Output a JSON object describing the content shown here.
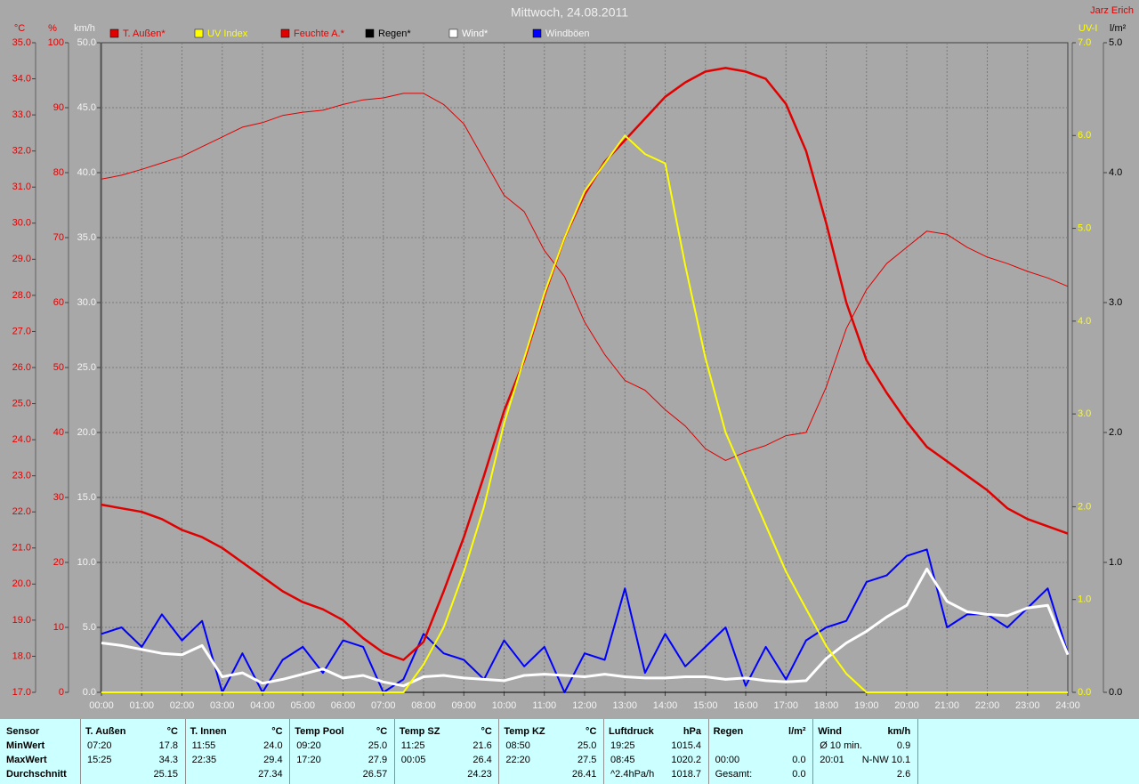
{
  "chart_data": {
    "type": "line",
    "title": "Mittwoch, 24.08.2011",
    "credit": "Jarz Erich",
    "grid": true,
    "xlim": [
      0,
      24
    ],
    "xticks": [
      {
        "value": 0,
        "label": "00:00"
      },
      {
        "value": 1,
        "label": "01:00"
      },
      {
        "value": 2,
        "label": "02:00"
      },
      {
        "value": 3,
        "label": "03:00"
      },
      {
        "value": 4,
        "label": "04:00"
      },
      {
        "value": 5,
        "label": "05:00"
      },
      {
        "value": 6,
        "label": "06:00"
      },
      {
        "value": 7,
        "label": "07:00"
      },
      {
        "value": 8,
        "label": "08:00"
      },
      {
        "value": 9,
        "label": "09:00"
      },
      {
        "value": 10,
        "label": "10:00"
      },
      {
        "value": 11,
        "label": "11:00"
      },
      {
        "value": 12,
        "label": "12:00"
      },
      {
        "value": 13,
        "label": "13:00"
      },
      {
        "value": 14,
        "label": "14:00"
      },
      {
        "value": 15,
        "label": "15:00"
      },
      {
        "value": 16,
        "label": "16:00"
      },
      {
        "value": 17,
        "label": "17:00"
      },
      {
        "value": 18,
        "label": "18:00"
      },
      {
        "value": 19,
        "label": "19:00"
      },
      {
        "value": 20,
        "label": "20:00"
      },
      {
        "value": 21,
        "label": "21:00"
      },
      {
        "value": 22,
        "label": "22:00"
      },
      {
        "value": 23,
        "label": "23:00"
      },
      {
        "value": 24,
        "label": "24:00"
      }
    ],
    "axes": {
      "y": {
        "label": "°C",
        "color": "#e00000",
        "lim": [
          17,
          35
        ],
        "ticks": [
          {
            "value": 17,
            "label": "17.0"
          },
          {
            "value": 18,
            "label": "18.0"
          },
          {
            "value": 19,
            "label": "19.0"
          },
          {
            "value": 20,
            "label": "20.0"
          },
          {
            "value": 21,
            "label": "21.0"
          },
          {
            "value": 22,
            "label": "22.0"
          },
          {
            "value": 23,
            "label": "23.0"
          },
          {
            "value": 24,
            "label": "24.0"
          },
          {
            "value": 25,
            "label": "25.0"
          },
          {
            "value": 26,
            "label": "26.0"
          },
          {
            "value": 27,
            "label": "27.0"
          },
          {
            "value": 28,
            "label": "28.0"
          },
          {
            "value": 29,
            "label": "29.0"
          },
          {
            "value": 30,
            "label": "30.0"
          },
          {
            "value": 31,
            "label": "31.0"
          },
          {
            "value": 32,
            "label": "32.0"
          },
          {
            "value": 33,
            "label": "33.0"
          },
          {
            "value": 34,
            "label": "34.0"
          },
          {
            "value": 35,
            "label": "35.0"
          }
        ]
      },
      "y2": {
        "label": "%",
        "color": "#e00000",
        "lim": [
          0,
          100
        ],
        "ticks": [
          0,
          10,
          20,
          30,
          40,
          50,
          60,
          70,
          80,
          90,
          100
        ]
      },
      "y3": {
        "label": "km/h",
        "color": "#f4f4f4",
        "lim": [
          0,
          50
        ],
        "ticks": [
          {
            "value": 0,
            "label": "0.0"
          },
          {
            "value": 5,
            "label": "5.0"
          },
          {
            "value": 10,
            "label": "10.0"
          },
          {
            "value": 15,
            "label": "15.0"
          },
          {
            "value": 20,
            "label": "20.0"
          },
          {
            "value": 25,
            "label": "25.0"
          },
          {
            "value": 30,
            "label": "30.0"
          },
          {
            "value": 35,
            "label": "35.0"
          },
          {
            "value": 40,
            "label": "40.0"
          },
          {
            "value": 45,
            "label": "45.0"
          },
          {
            "value": 50,
            "label": "50.0"
          }
        ]
      },
      "y4": {
        "label": "UV-I",
        "color": "#ffff00",
        "lim": [
          0,
          7
        ],
        "ticks": [
          {
            "value": 0,
            "label": "0.0"
          },
          {
            "value": 1,
            "label": "1.0"
          },
          {
            "value": 2,
            "label": "2.0"
          },
          {
            "value": 3,
            "label": "3.0"
          },
          {
            "value": 4,
            "label": "4.0"
          },
          {
            "value": 5,
            "label": "5.0"
          },
          {
            "value": 6,
            "label": "6.0"
          },
          {
            "value": 7,
            "label": "7.0"
          }
        ]
      },
      "y5": {
        "label": "l/m²",
        "color": "#000000",
        "lim": [
          0,
          5
        ],
        "ticks": [
          {
            "value": 0,
            "label": "0.0"
          },
          {
            "value": 1,
            "label": "1.0"
          },
          {
            "value": 2,
            "label": "2.0"
          },
          {
            "value": 3,
            "label": "3.0"
          },
          {
            "value": 4,
            "label": "4.0"
          },
          {
            "value": 5,
            "label": "5.0"
          }
        ]
      }
    },
    "x": [
      0,
      0.5,
      1,
      1.5,
      2,
      2.5,
      3,
      3.5,
      4,
      4.5,
      5,
      5.5,
      6,
      6.5,
      7,
      7.5,
      8,
      8.5,
      9,
      9.5,
      10,
      10.5,
      11,
      11.5,
      12,
      12.5,
      13,
      13.5,
      14,
      14.5,
      15,
      15.5,
      16,
      16.5,
      17,
      17.5,
      18,
      18.5,
      19,
      19.5,
      20,
      20.5,
      21,
      21.5,
      22,
      22.5,
      23,
      23.5,
      24
    ],
    "series": [
      {
        "name": "T. Außen*",
        "color": "#e00000",
        "axis": "y",
        "values": [
          22.2,
          22.1,
          22.0,
          21.8,
          21.5,
          21.3,
          21.0,
          20.6,
          20.2,
          19.8,
          19.5,
          19.3,
          19.0,
          18.5,
          18.1,
          17.9,
          18.4,
          19.8,
          21.3,
          23.0,
          24.8,
          26.2,
          28.0,
          29.6,
          30.8,
          31.7,
          32.3,
          32.9,
          33.5,
          33.9,
          34.2,
          34.3,
          34.2,
          34.0,
          33.3,
          32.0,
          30.0,
          27.8,
          26.2,
          25.3,
          24.5,
          23.8,
          23.4,
          23.0,
          22.6,
          22.1,
          21.8,
          21.6,
          21.4
        ]
      },
      {
        "name": "UV Index",
        "color": "#ffff00",
        "axis": "y4",
        "values": [
          0,
          0,
          0,
          0,
          0,
          0,
          0,
          0,
          0,
          0,
          0,
          0,
          0,
          0,
          0,
          0,
          0.3,
          0.7,
          1.3,
          2.0,
          2.9,
          3.6,
          4.3,
          4.9,
          5.4,
          5.7,
          6.0,
          5.8,
          5.7,
          4.6,
          3.6,
          2.8,
          2.3,
          1.8,
          1.3,
          0.9,
          0.5,
          0.2,
          0,
          0,
          0,
          0,
          0,
          0,
          0,
          0,
          0,
          0,
          0
        ]
      },
      {
        "name": "Feuchte A.*",
        "color": "#e00000",
        "axis": "y2",
        "values": [
          79.0,
          79.6,
          80.5,
          81.5,
          82.5,
          84.0,
          85.5,
          87.0,
          87.7,
          88.8,
          89.3,
          89.6,
          90.5,
          91.2,
          91.5,
          92.2,
          92.2,
          90.5,
          87.5,
          82.0,
          76.5,
          74.0,
          68.0,
          64.0,
          57.0,
          52.0,
          48.0,
          46.5,
          43.5,
          41.0,
          37.5,
          35.7,
          37.0,
          38.0,
          39.5,
          40.0,
          47.0,
          56.0,
          62.0,
          66.0,
          68.5,
          71.0,
          70.5,
          68.5,
          67.0,
          66.0,
          64.8,
          63.8,
          62.5
        ]
      },
      {
        "name": "Regen*",
        "color": "#000000",
        "axis": "y5",
        "values": [
          0,
          0,
          0,
          0,
          0,
          0,
          0,
          0,
          0,
          0,
          0,
          0,
          0,
          0,
          0,
          0,
          0,
          0,
          0,
          0,
          0,
          0,
          0,
          0,
          0,
          0,
          0,
          0,
          0,
          0,
          0,
          0,
          0,
          0,
          0,
          0,
          0,
          0,
          0,
          0,
          0,
          0,
          0,
          0,
          0,
          0,
          0,
          0,
          0
        ]
      },
      {
        "name": "Wind*",
        "color": "#ffffff",
        "axis": "y3",
        "values": [
          3.8,
          3.6,
          3.3,
          3.0,
          2.9,
          3.6,
          1.2,
          1.5,
          0.7,
          1.0,
          1.4,
          1.8,
          1.1,
          1.3,
          0.8,
          0.5,
          1.2,
          1.3,
          1.1,
          1.0,
          0.9,
          1.3,
          1.4,
          1.3,
          1.2,
          1.4,
          1.2,
          1.1,
          1.1,
          1.2,
          1.2,
          1.0,
          1.1,
          0.9,
          0.8,
          0.9,
          2.6,
          3.8,
          4.7,
          5.8,
          6.7,
          9.5,
          7.0,
          6.2,
          6.0,
          5.9,
          6.5,
          6.7,
          2.9
        ]
      },
      {
        "name": "Windböen",
        "color": "#0000ff",
        "axis": "y3",
        "values": [
          4.5,
          5.0,
          3.5,
          6.0,
          4.0,
          5.5,
          0,
          3.0,
          0,
          2.5,
          3.5,
          1.5,
          4.0,
          3.5,
          0,
          1.0,
          4.5,
          3.0,
          2.5,
          1.0,
          4.0,
          2.0,
          3.5,
          0,
          3.0,
          2.5,
          8.0,
          1.5,
          4.5,
          2.0,
          3.5,
          5.0,
          0.5,
          3.5,
          1.0,
          4.0,
          5.0,
          5.5,
          8.5,
          9.0,
          10.5,
          11.0,
          5.0,
          6.0,
          6.0,
          5.0,
          6.5,
          8.0,
          3.0
        ]
      }
    ]
  },
  "table": {
    "row_labels": [
      "Sensor",
      "MinWert",
      "MaxWert",
      "Durchschnitt"
    ],
    "sections": [
      {
        "name": "T. Außen",
        "unit": "°C",
        "rows": [
          [
            "07:20",
            "17.8"
          ],
          [
            "15:25",
            "34.3"
          ],
          [
            "25.15"
          ]
        ]
      },
      {
        "name": "T. Innen",
        "unit": "°C",
        "rows": [
          [
            "11:55",
            "24.0"
          ],
          [
            "22:35",
            "29.4"
          ],
          [
            "27.34"
          ]
        ]
      },
      {
        "name": "Temp Pool",
        "unit": "°C",
        "rows": [
          [
            "09:20",
            "25.0"
          ],
          [
            "17:20",
            "27.9"
          ],
          [
            "26.57"
          ]
        ]
      },
      {
        "name": "Temp SZ",
        "unit": "°C",
        "rows": [
          [
            "11:25",
            "21.6"
          ],
          [
            "00:05",
            "26.4"
          ],
          [
            "24.23"
          ]
        ]
      },
      {
        "name": "Temp KZ",
        "unit": "°C",
        "rows": [
          [
            "08:50",
            "25.0"
          ],
          [
            "22:20",
            "27.5"
          ],
          [
            "26.41"
          ]
        ]
      },
      {
        "name": "Luftdruck",
        "unit": "hPa",
        "rows": [
          [
            "19:25",
            "1015.4"
          ],
          [
            "08:45",
            "1020.2"
          ],
          [
            "^2.4hPa/h",
            "1018.7"
          ]
        ]
      },
      {
        "name": "Regen",
        "unit": "l/m²",
        "rows": [
          [],
          [
            "00:00",
            "0.0"
          ],
          [
            "Gesamt:",
            "0.0"
          ]
        ]
      },
      {
        "name": "Wind",
        "unit": "km/h",
        "rows": [
          [
            "Ø 10 min.",
            "0.9"
          ],
          [
            "20:01",
            "N-NW 10.1"
          ],
          [
            "2.6"
          ]
        ]
      }
    ]
  }
}
